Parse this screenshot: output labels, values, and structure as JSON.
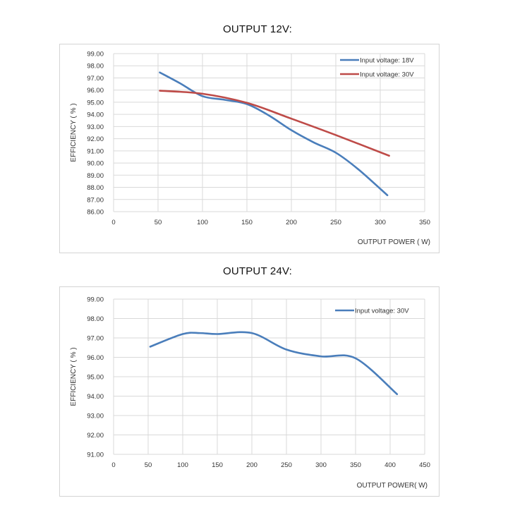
{
  "chart_data": [
    {
      "type": "line",
      "title": "OUTPUT 12V:",
      "xlabel": "OUTPUT POWER ( W)",
      "ylabel": "EFFICIENCY ( % )",
      "xlim": [
        0,
        350
      ],
      "ylim": [
        86,
        99
      ],
      "x_ticks": [
        0,
        50,
        100,
        150,
        200,
        250,
        300,
        350
      ],
      "x_tick_labels": [
        "0",
        "50",
        "100",
        "150",
        "200",
        "250",
        "300",
        "350"
      ],
      "y_ticks": [
        86,
        87,
        88,
        89,
        90,
        91,
        92,
        93,
        94,
        95,
        96,
        97,
        98,
        99
      ],
      "y_tick_labels": [
        "86.00",
        "87.00",
        "88.00",
        "89.00",
        "90.00",
        "91.00",
        "92.00",
        "93.00",
        "94.00",
        "95.00",
        "96.00",
        "97.00",
        "98.00",
        "99.00"
      ],
      "grid": true,
      "legend_position": "top-right",
      "series": [
        {
          "name": "Input voltage: 18V",
          "color": "#4a7ebb",
          "x": [
            52,
            75,
            100,
            125,
            150,
            175,
            200,
            225,
            250,
            275,
            308
          ],
          "y": [
            97.45,
            96.55,
            95.5,
            95.2,
            94.85,
            93.9,
            92.7,
            91.7,
            90.85,
            89.5,
            87.35
          ]
        },
        {
          "name": "Input voltage: 30V",
          "color": "#be4b48",
          "x": [
            52,
            100,
            150,
            200,
            250,
            310
          ],
          "y": [
            95.95,
            95.7,
            94.95,
            93.65,
            92.3,
            90.6
          ]
        }
      ]
    },
    {
      "type": "line",
      "title": "OUTPUT 24V:",
      "xlabel": "OUTPUT POWER( W)",
      "ylabel": "EFFICIENCY ( % )",
      "xlim": [
        0,
        450
      ],
      "ylim": [
        91,
        99
      ],
      "x_ticks": [
        0,
        50,
        100,
        150,
        200,
        250,
        300,
        350,
        400,
        450
      ],
      "x_tick_labels": [
        "0",
        "50",
        "100",
        "150",
        "200",
        "250",
        "300",
        "350",
        "400",
        "450"
      ],
      "y_ticks": [
        91,
        92,
        93,
        94,
        95,
        96,
        97,
        98,
        99
      ],
      "y_tick_labels": [
        "91.00",
        "92.00",
        "93.00",
        "94.00",
        "95.00",
        "96.00",
        "97.00",
        "98.00",
        "99.00"
      ],
      "grid": true,
      "legend_position": "top-right",
      "series": [
        {
          "name": "Input voltage: 30V",
          "color": "#4a7ebb",
          "x": [
            53,
            100,
            125,
            150,
            200,
            250,
            300,
            350,
            410
          ],
          "y": [
            96.55,
            97.2,
            97.25,
            97.2,
            97.25,
            96.4,
            96.05,
            95.95,
            94.1
          ]
        }
      ]
    }
  ]
}
